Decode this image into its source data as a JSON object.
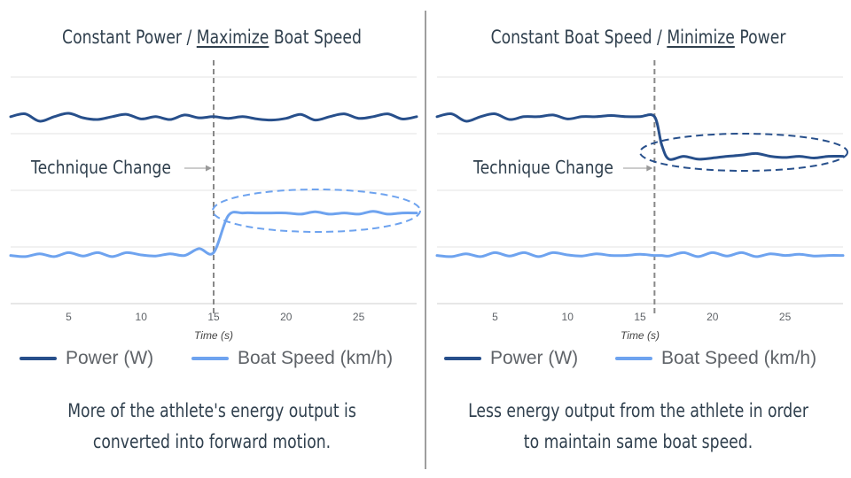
{
  "colors": {
    "power": "#274f8b",
    "speed": "#6ea3ef",
    "grid": "#e3e3e3",
    "text": "#2f3f4d",
    "tick": "#5f6368"
  },
  "left": {
    "title_pre": "Constant Power / ",
    "title_em": "Maximize",
    "title_post": " Boat Speed",
    "annotation": "Technique Change",
    "caption_line1": "More of the athlete's energy output is",
    "caption_line2": "converted into forward motion."
  },
  "right": {
    "title_pre": "Constant Boat Speed / ",
    "title_em": "Minimize",
    "title_post": " Power",
    "annotation": "Technique Change",
    "caption_line1": "Less energy output from the athlete in order",
    "caption_line2": "to maintain same boat speed."
  },
  "legend": {
    "power": "Power (W)",
    "speed": "Boat Speed (km/h)"
  },
  "chart_data": [
    {
      "type": "line",
      "xlabel": "Time (s)",
      "xticks": [
        5,
        10,
        15,
        20,
        25
      ],
      "xlim": [
        1,
        29
      ],
      "ylim": [
        0,
        4
      ],
      "grid": true,
      "legend_position": "bottom",
      "annotation": {
        "x": 15,
        "text": "Technique Change"
      },
      "x": [
        1,
        2,
        3,
        4,
        5,
        6,
        7,
        8,
        9,
        10,
        11,
        12,
        13,
        14,
        15,
        16,
        17,
        18,
        19,
        20,
        21,
        22,
        23,
        24,
        25,
        26,
        27,
        28,
        29
      ],
      "series": [
        {
          "name": "Power (W)",
          "values": [
            3.3,
            3.35,
            3.22,
            3.3,
            3.36,
            3.28,
            3.25,
            3.3,
            3.34,
            3.26,
            3.3,
            3.25,
            3.33,
            3.28,
            3.3,
            3.27,
            3.3,
            3.26,
            3.24,
            3.27,
            3.34,
            3.24,
            3.3,
            3.35,
            3.27,
            3.3,
            3.35,
            3.26,
            3.3
          ]
        },
        {
          "name": "Boat Speed (km/h)",
          "values": [
            0.85,
            0.83,
            0.88,
            0.83,
            0.9,
            0.84,
            0.9,
            0.83,
            0.9,
            0.86,
            0.84,
            0.88,
            0.85,
            0.97,
            0.9,
            1.55,
            1.6,
            1.6,
            1.6,
            1.6,
            1.58,
            1.62,
            1.58,
            1.6,
            1.58,
            1.63,
            1.58,
            1.6,
            1.6
          ]
        }
      ]
    },
    {
      "type": "line",
      "xlabel": "Time (s)",
      "xticks": [
        5,
        10,
        15,
        20,
        25
      ],
      "xlim": [
        1,
        29
      ],
      "ylim": [
        0,
        4
      ],
      "grid": true,
      "legend_position": "bottom",
      "annotation": {
        "x": 16,
        "text": "Technique Change"
      },
      "x": [
        1,
        2,
        3,
        4,
        5,
        6,
        7,
        8,
        9,
        10,
        11,
        12,
        13,
        14,
        15,
        16,
        16.5,
        17,
        18,
        19,
        20,
        21,
        22,
        23,
        24,
        25,
        26,
        27,
        28,
        29
      ],
      "series": [
        {
          "name": "Power (W)",
          "values": [
            3.3,
            3.35,
            3.22,
            3.3,
            3.35,
            3.25,
            3.3,
            3.3,
            3.33,
            3.26,
            3.3,
            3.3,
            3.32,
            3.3,
            3.3,
            3.3,
            2.8,
            2.55,
            2.6,
            2.55,
            2.57,
            2.6,
            2.62,
            2.65,
            2.6,
            2.58,
            2.6,
            2.57,
            2.6,
            2.6
          ]
        },
        {
          "name": "Boat Speed (km/h)",
          "values": [
            0.85,
            0.83,
            0.88,
            0.83,
            0.9,
            0.84,
            0.9,
            0.83,
            0.9,
            0.86,
            0.84,
            0.88,
            0.85,
            0.85,
            0.87,
            0.85,
            0.85,
            0.84,
            0.9,
            0.83,
            0.9,
            0.84,
            0.9,
            0.83,
            0.88,
            0.85,
            0.87,
            0.84,
            0.85,
            0.85
          ]
        }
      ]
    }
  ]
}
